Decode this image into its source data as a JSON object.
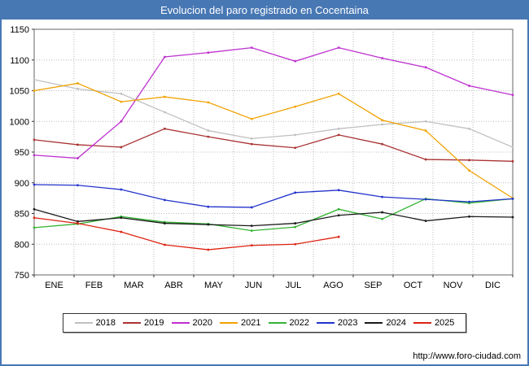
{
  "title": "Evolucion del paro registrado en Cocentaina",
  "footer": {
    "url": "http://www.foro-ciudad.com"
  },
  "colors": {
    "frame": "#4878b4",
    "titlebar_bg": "#4878b4",
    "titlebar_text": "#ffffff",
    "grid": "#bbbbbb",
    "plot_border": "#666666"
  },
  "chart_data": {
    "type": "line",
    "title": "Evolucion del paro registrado en Cocentaina",
    "categories": [
      "ENE",
      "FEB",
      "MAR",
      "ABR",
      "MAY",
      "JUN",
      "JUL",
      "AGO",
      "SEP",
      "OCT",
      "NOV",
      "DIC"
    ],
    "xlabel": "",
    "ylabel": "",
    "ylim": [
      750,
      1150
    ],
    "ytick_step": 50,
    "grid": true,
    "legend_position": "bottom",
    "series": [
      {
        "name": "2018",
        "color": "#c0c0c0",
        "values": [
          1068,
          1053,
          1045,
          1015,
          985,
          972,
          978,
          988,
          995,
          1000,
          988,
          958
        ]
      },
      {
        "name": "2019",
        "color": "#aa3333",
        "values": [
          970,
          962,
          958,
          988,
          975,
          963,
          957,
          978,
          963,
          938,
          937,
          935
        ]
      },
      {
        "name": "2020",
        "color": "#bf30d0",
        "values": [
          945,
          940,
          1000,
          1105,
          1112,
          1120,
          1098,
          1120,
          1103,
          1088,
          1058,
          1043
        ]
      },
      {
        "name": "2021",
        "color": "#f0a202",
        "values": [
          1050,
          1062,
          1032,
          1040,
          1031,
          1004,
          1024,
          1045,
          1002,
          985,
          920,
          875
        ]
      },
      {
        "name": "2022",
        "color": "#33b333",
        "values": [
          827,
          833,
          845,
          836,
          833,
          822,
          828,
          857,
          841,
          874,
          867,
          874
        ]
      },
      {
        "name": "2023",
        "color": "#2233cc",
        "values": [
          897,
          896,
          889,
          872,
          861,
          860,
          884,
          888,
          877,
          873,
          869,
          874
        ]
      },
      {
        "name": "2024",
        "color": "#1a1a1a",
        "values": [
          857,
          837,
          843,
          834,
          832,
          830,
          834,
          847,
          852,
          838,
          845,
          844
        ]
      },
      {
        "name": "2025",
        "color": "#dd2211",
        "values": [
          843,
          834,
          820,
          799,
          791,
          798,
          800,
          812
        ]
      }
    ]
  }
}
